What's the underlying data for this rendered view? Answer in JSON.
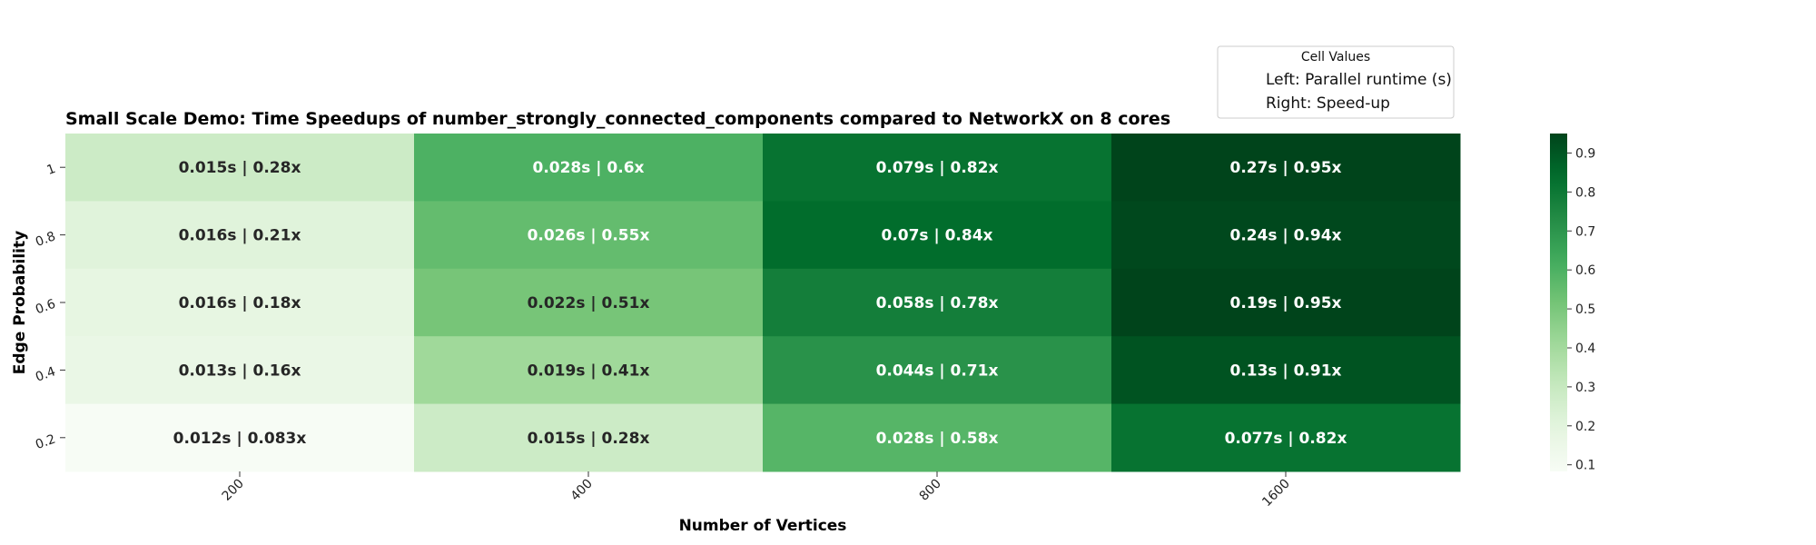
{
  "chart_data": {
    "type": "heatmap",
    "title": "Small Scale Demo: Time Speedups of number_strongly_connected_components compared to NetworkX on 8 cores",
    "xlabel": "Number of Vertices",
    "ylabel": "Edge Probability",
    "x_categories": [
      "200",
      "400",
      "800",
      "1600"
    ],
    "y_categories": [
      "1",
      "0.8",
      "0.6",
      "0.4",
      "0.2"
    ],
    "values": [
      [
        0.28,
        0.6,
        0.82,
        0.95
      ],
      [
        0.21,
        0.55,
        0.84,
        0.94
      ],
      [
        0.18,
        0.51,
        0.78,
        0.95
      ],
      [
        0.16,
        0.41,
        0.71,
        0.91
      ],
      [
        0.083,
        0.28,
        0.58,
        0.82
      ]
    ],
    "cell_labels": [
      [
        "0.015s | 0.28x",
        "0.028s | 0.6x",
        "0.079s | 0.82x",
        "0.27s | 0.95x"
      ],
      [
        "0.016s | 0.21x",
        "0.026s | 0.55x",
        "0.07s | 0.84x",
        "0.24s | 0.94x"
      ],
      [
        "0.016s | 0.18x",
        "0.022s | 0.51x",
        "0.058s | 0.78x",
        "0.19s | 0.95x"
      ],
      [
        "0.013s | 0.16x",
        "0.019s | 0.41x",
        "0.044s | 0.71x",
        "0.13s | 0.91x"
      ],
      [
        "0.012s | 0.083x",
        "0.015s | 0.28x",
        "0.028s | 0.58x",
        "0.077s | 0.82x"
      ]
    ],
    "colormap": "Greens",
    "colorbar": {
      "range": [
        0.083,
        0.95
      ],
      "ticks": [
        0.1,
        0.2,
        0.3,
        0.4,
        0.5,
        0.6,
        0.7,
        0.8,
        0.9
      ],
      "tick_labels": [
        "0.1",
        "0.2",
        "0.3",
        "0.4",
        "0.5",
        "0.6",
        "0.7",
        "0.8",
        "0.9"
      ]
    },
    "legend": {
      "title": "Cell Values",
      "items": [
        "Left: Parallel runtime (s)",
        "Right: Speed-up"
      ],
      "placement": "top-right"
    }
  }
}
